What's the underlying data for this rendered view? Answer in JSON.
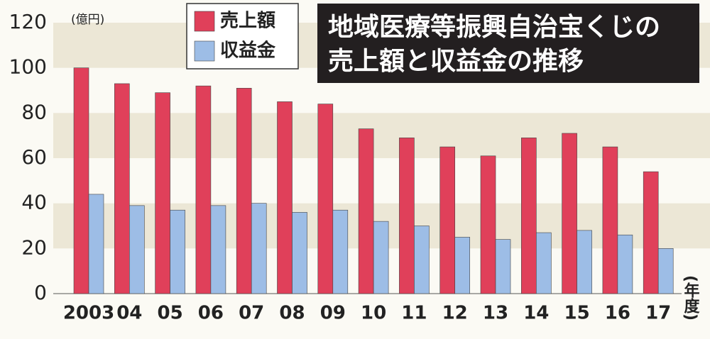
{
  "chart_data": {
    "type": "bar",
    "title": [
      "地域医療等振興自治宝くじの",
      "売上額と収益金の推移"
    ],
    "y_unit": "(億円)",
    "x_unit": "(年度)",
    "categories": [
      "2003",
      "04",
      "05",
      "06",
      "07",
      "08",
      "09",
      "10",
      "11",
      "12",
      "13",
      "14",
      "15",
      "16",
      "17"
    ],
    "series": [
      {
        "name": "売上額",
        "color": "#e0405a",
        "values": [
          100,
          93,
          89,
          92,
          91,
          85,
          84,
          73,
          69,
          65,
          61,
          69,
          71,
          65,
          54
        ]
      },
      {
        "name": "収益金",
        "color": "#9dbde6",
        "values": [
          44,
          39,
          37,
          39,
          40,
          36,
          37,
          32,
          30,
          25,
          24,
          27,
          28,
          26,
          20
        ]
      }
    ],
    "ylim": [
      0,
      120
    ],
    "yticks": [
      0,
      20,
      40,
      60,
      80,
      100,
      120
    ],
    "grid": true
  }
}
